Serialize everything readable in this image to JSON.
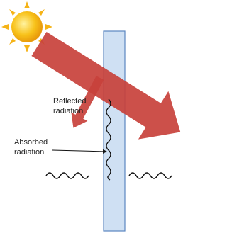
{
  "reflected_label": [
    "Reflected",
    "radiation"
  ],
  "absorbed_label": [
    "Absorbed",
    "radiation"
  ]
}
